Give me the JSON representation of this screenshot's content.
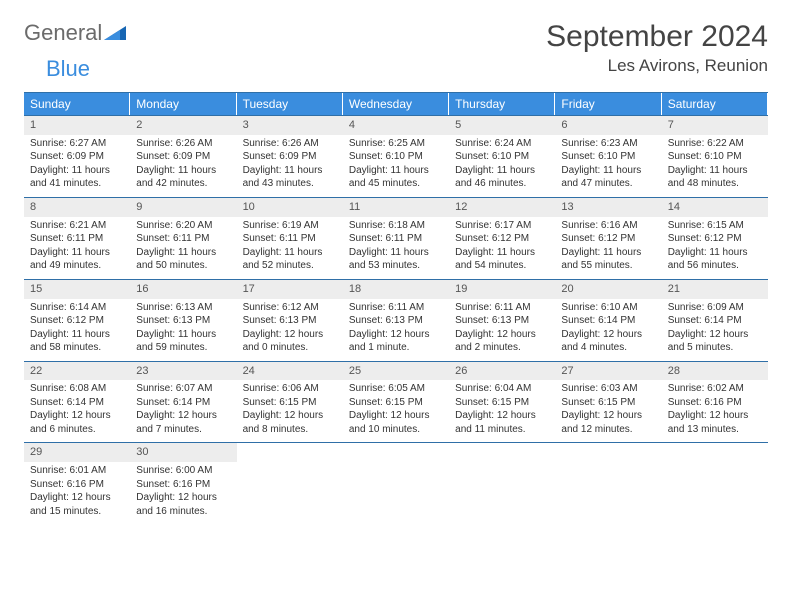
{
  "logo": {
    "text_general": "General",
    "text_blue": "Blue"
  },
  "title": "September 2024",
  "location": "Les Avirons, Reunion",
  "colors": {
    "header_bg": "#3a8dde",
    "border": "#2f6fa7",
    "daynum_bg": "#ededed"
  },
  "day_headers": [
    "Sunday",
    "Monday",
    "Tuesday",
    "Wednesday",
    "Thursday",
    "Friday",
    "Saturday"
  ],
  "weeks": [
    [
      {
        "n": "1",
        "sr": "Sunrise: 6:27 AM",
        "ss": "Sunset: 6:09 PM",
        "d1": "Daylight: 11 hours",
        "d2": "and 41 minutes."
      },
      {
        "n": "2",
        "sr": "Sunrise: 6:26 AM",
        "ss": "Sunset: 6:09 PM",
        "d1": "Daylight: 11 hours",
        "d2": "and 42 minutes."
      },
      {
        "n": "3",
        "sr": "Sunrise: 6:26 AM",
        "ss": "Sunset: 6:09 PM",
        "d1": "Daylight: 11 hours",
        "d2": "and 43 minutes."
      },
      {
        "n": "4",
        "sr": "Sunrise: 6:25 AM",
        "ss": "Sunset: 6:10 PM",
        "d1": "Daylight: 11 hours",
        "d2": "and 45 minutes."
      },
      {
        "n": "5",
        "sr": "Sunrise: 6:24 AM",
        "ss": "Sunset: 6:10 PM",
        "d1": "Daylight: 11 hours",
        "d2": "and 46 minutes."
      },
      {
        "n": "6",
        "sr": "Sunrise: 6:23 AM",
        "ss": "Sunset: 6:10 PM",
        "d1": "Daylight: 11 hours",
        "d2": "and 47 minutes."
      },
      {
        "n": "7",
        "sr": "Sunrise: 6:22 AM",
        "ss": "Sunset: 6:10 PM",
        "d1": "Daylight: 11 hours",
        "d2": "and 48 minutes."
      }
    ],
    [
      {
        "n": "8",
        "sr": "Sunrise: 6:21 AM",
        "ss": "Sunset: 6:11 PM",
        "d1": "Daylight: 11 hours",
        "d2": "and 49 minutes."
      },
      {
        "n": "9",
        "sr": "Sunrise: 6:20 AM",
        "ss": "Sunset: 6:11 PM",
        "d1": "Daylight: 11 hours",
        "d2": "and 50 minutes."
      },
      {
        "n": "10",
        "sr": "Sunrise: 6:19 AM",
        "ss": "Sunset: 6:11 PM",
        "d1": "Daylight: 11 hours",
        "d2": "and 52 minutes."
      },
      {
        "n": "11",
        "sr": "Sunrise: 6:18 AM",
        "ss": "Sunset: 6:11 PM",
        "d1": "Daylight: 11 hours",
        "d2": "and 53 minutes."
      },
      {
        "n": "12",
        "sr": "Sunrise: 6:17 AM",
        "ss": "Sunset: 6:12 PM",
        "d1": "Daylight: 11 hours",
        "d2": "and 54 minutes."
      },
      {
        "n": "13",
        "sr": "Sunrise: 6:16 AM",
        "ss": "Sunset: 6:12 PM",
        "d1": "Daylight: 11 hours",
        "d2": "and 55 minutes."
      },
      {
        "n": "14",
        "sr": "Sunrise: 6:15 AM",
        "ss": "Sunset: 6:12 PM",
        "d1": "Daylight: 11 hours",
        "d2": "and 56 minutes."
      }
    ],
    [
      {
        "n": "15",
        "sr": "Sunrise: 6:14 AM",
        "ss": "Sunset: 6:12 PM",
        "d1": "Daylight: 11 hours",
        "d2": "and 58 minutes."
      },
      {
        "n": "16",
        "sr": "Sunrise: 6:13 AM",
        "ss": "Sunset: 6:13 PM",
        "d1": "Daylight: 11 hours",
        "d2": "and 59 minutes."
      },
      {
        "n": "17",
        "sr": "Sunrise: 6:12 AM",
        "ss": "Sunset: 6:13 PM",
        "d1": "Daylight: 12 hours",
        "d2": "and 0 minutes."
      },
      {
        "n": "18",
        "sr": "Sunrise: 6:11 AM",
        "ss": "Sunset: 6:13 PM",
        "d1": "Daylight: 12 hours",
        "d2": "and 1 minute."
      },
      {
        "n": "19",
        "sr": "Sunrise: 6:11 AM",
        "ss": "Sunset: 6:13 PM",
        "d1": "Daylight: 12 hours",
        "d2": "and 2 minutes."
      },
      {
        "n": "20",
        "sr": "Sunrise: 6:10 AM",
        "ss": "Sunset: 6:14 PM",
        "d1": "Daylight: 12 hours",
        "d2": "and 4 minutes."
      },
      {
        "n": "21",
        "sr": "Sunrise: 6:09 AM",
        "ss": "Sunset: 6:14 PM",
        "d1": "Daylight: 12 hours",
        "d2": "and 5 minutes."
      }
    ],
    [
      {
        "n": "22",
        "sr": "Sunrise: 6:08 AM",
        "ss": "Sunset: 6:14 PM",
        "d1": "Daylight: 12 hours",
        "d2": "and 6 minutes."
      },
      {
        "n": "23",
        "sr": "Sunrise: 6:07 AM",
        "ss": "Sunset: 6:14 PM",
        "d1": "Daylight: 12 hours",
        "d2": "and 7 minutes."
      },
      {
        "n": "24",
        "sr": "Sunrise: 6:06 AM",
        "ss": "Sunset: 6:15 PM",
        "d1": "Daylight: 12 hours",
        "d2": "and 8 minutes."
      },
      {
        "n": "25",
        "sr": "Sunrise: 6:05 AM",
        "ss": "Sunset: 6:15 PM",
        "d1": "Daylight: 12 hours",
        "d2": "and 10 minutes."
      },
      {
        "n": "26",
        "sr": "Sunrise: 6:04 AM",
        "ss": "Sunset: 6:15 PM",
        "d1": "Daylight: 12 hours",
        "d2": "and 11 minutes."
      },
      {
        "n": "27",
        "sr": "Sunrise: 6:03 AM",
        "ss": "Sunset: 6:15 PM",
        "d1": "Daylight: 12 hours",
        "d2": "and 12 minutes."
      },
      {
        "n": "28",
        "sr": "Sunrise: 6:02 AM",
        "ss": "Sunset: 6:16 PM",
        "d1": "Daylight: 12 hours",
        "d2": "and 13 minutes."
      }
    ],
    [
      {
        "n": "29",
        "sr": "Sunrise: 6:01 AM",
        "ss": "Sunset: 6:16 PM",
        "d1": "Daylight: 12 hours",
        "d2": "and 15 minutes."
      },
      {
        "n": "30",
        "sr": "Sunrise: 6:00 AM",
        "ss": "Sunset: 6:16 PM",
        "d1": "Daylight: 12 hours",
        "d2": "and 16 minutes."
      },
      {
        "empty": true
      },
      {
        "empty": true
      },
      {
        "empty": true
      },
      {
        "empty": true
      },
      {
        "empty": true
      }
    ]
  ]
}
